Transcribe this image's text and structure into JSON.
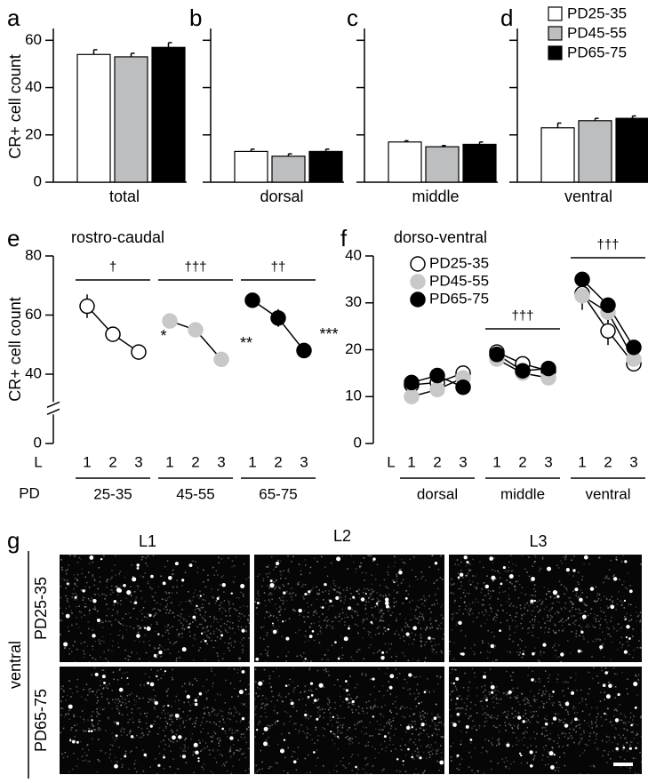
{
  "chart_data": [
    {
      "type": "bar",
      "panel_labels": [
        "a",
        "b",
        "c",
        "d"
      ],
      "categories": [
        "total",
        "dorsal",
        "middle",
        "ventral"
      ],
      "ylabel": "CR+ cell count",
      "ylim": [
        0,
        65
      ],
      "yticks": [
        0,
        20,
        40,
        60
      ],
      "legend": "upper-right",
      "series": [
        {
          "name": "PD25-35",
          "color": "#ffffff",
          "values": [
            54,
            13,
            17,
            23
          ],
          "errors": [
            2,
            1,
            0.5,
            2
          ]
        },
        {
          "name": "PD45-55",
          "color": "#bcbec0",
          "values": [
            53,
            11,
            15,
            26
          ],
          "errors": [
            1.5,
            1,
            0.5,
            1
          ]
        },
        {
          "name": "PD65-75",
          "color": "#000000",
          "values": [
            57,
            13,
            16,
            27
          ],
          "errors": [
            2,
            1,
            1,
            1
          ]
        }
      ]
    },
    {
      "type": "line",
      "panel_label": "e",
      "title": "rostro-caudal",
      "ylabel": "CR+ cell count",
      "xlabel": "L",
      "group_label": "PD",
      "categories": [
        "1",
        "2",
        "3",
        "1",
        "2",
        "3",
        "1",
        "2",
        "3"
      ],
      "groups": [
        "25-35",
        "45-55",
        "65-75"
      ],
      "ylim": [
        33,
        80
      ],
      "yticks": [
        0,
        40,
        60,
        80
      ],
      "axis_break": true,
      "series": [
        {
          "color": "#ffffff",
          "values": [
            63,
            53.5,
            47.5,
            null,
            null,
            null,
            null,
            null,
            null
          ],
          "errors": [
            4,
            2.5,
            1.5,
            null,
            null,
            null,
            null,
            null,
            null
          ]
        },
        {
          "color": "#c8c8c8",
          "values": [
            null,
            null,
            null,
            58,
            55,
            45,
            null,
            null,
            null
          ],
          "errors": [
            null,
            null,
            null,
            1,
            2,
            1,
            null,
            null,
            null
          ]
        },
        {
          "color": "#000000",
          "values": [
            null,
            null,
            null,
            null,
            null,
            null,
            65,
            59,
            48
          ],
          "errors": [
            null,
            null,
            null,
            null,
            null,
            null,
            2,
            3,
            1
          ]
        }
      ],
      "group_annotations": [
        {
          "group": 0,
          "text": "†"
        },
        {
          "group": 1,
          "text": "†††"
        },
        {
          "group": 2,
          "text": "††"
        }
      ],
      "point_annotations": [
        {
          "series": 0,
          "index": 2,
          "text": "*"
        },
        {
          "series": 1,
          "index": 5,
          "text": "**"
        },
        {
          "series": 2,
          "index": 8,
          "text": "***"
        }
      ]
    },
    {
      "type": "line",
      "panel_label": "f",
      "title": "dorso-ventral",
      "xlabel": "L",
      "categories": [
        "1",
        "2",
        "3",
        "1",
        "2",
        "3",
        "1",
        "2",
        "3"
      ],
      "groups": [
        "dorsal",
        "middle",
        "ventral"
      ],
      "ylim": [
        0,
        40
      ],
      "yticks": [
        0,
        10,
        20,
        30,
        40
      ],
      "legend": "upper-left",
      "series": [
        {
          "name": "PD25-35",
          "color": "#ffffff",
          "values": [
            12.5,
            13,
            15,
            19.5,
            17,
            15.5,
            32,
            24,
            17
          ],
          "errors": [
            0.8,
            0.8,
            1,
            0.8,
            0.8,
            0.8,
            2,
            3,
            1
          ]
        },
        {
          "name": "PD45-55",
          "color": "#c8c8c8",
          "values": [
            10,
            11.5,
            14,
            18,
            15,
            14,
            31.5,
            28,
            18
          ],
          "errors": [
            0.8,
            0.8,
            1,
            0.8,
            0.8,
            0.8,
            3,
            2,
            1
          ]
        },
        {
          "name": "PD65-75",
          "color": "#000000",
          "values": [
            13,
            14.5,
            12,
            19,
            15.5,
            16,
            35,
            29.5,
            20.5
          ],
          "errors": [
            0.8,
            1.5,
            0.8,
            0.8,
            0.8,
            0.8,
            1,
            1.5,
            1
          ]
        }
      ],
      "group_annotations": [
        {
          "group": 1,
          "text": "†††"
        },
        {
          "group": 2,
          "text": "†††"
        }
      ]
    }
  ],
  "image_panel": {
    "label": "g",
    "columns": [
      "L1",
      "L2",
      "L3"
    ],
    "rows": [
      "PD25-35",
      "PD65-75"
    ],
    "group": "ventral"
  }
}
